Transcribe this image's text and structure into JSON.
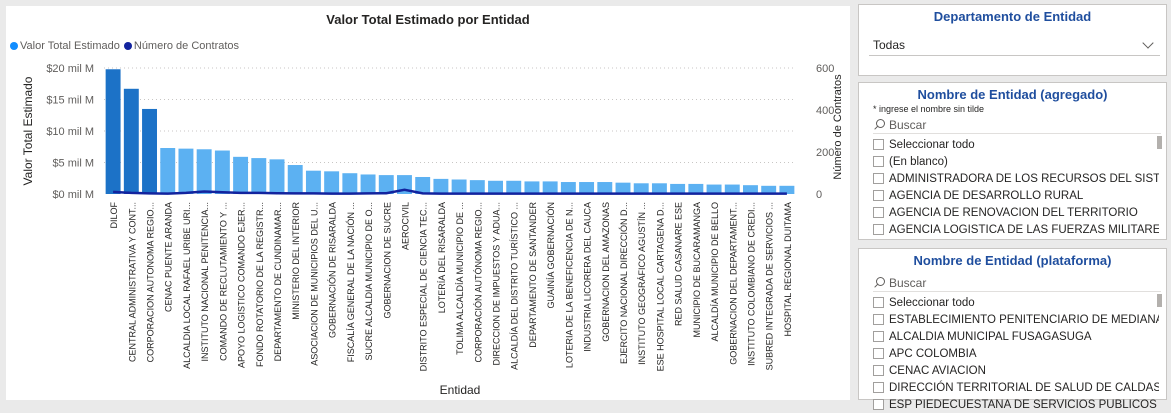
{
  "chart_data": {
    "type": "bar+line",
    "title": "Valor Total Estimado por Entidad",
    "xlabel": "Entidad",
    "ylabel": "Valor Total Estimado",
    "y2label": "Número de Contratos",
    "ylim": [
      0,
      20
    ],
    "y2lim": [
      0,
      600
    ],
    "yticks": [
      "$0 mil M",
      "$5 mil M",
      "$10 mil M",
      "$15 mil M",
      "$20 mil M"
    ],
    "y2ticks": [
      "0",
      "200",
      "400",
      "600"
    ],
    "legend_position": "top-left",
    "categories": [
      "DILOF",
      "CENTRAL ADMINISTRATIVA Y CONT...",
      "CORPORACION AUTONOMA REGIO...",
      "CENAC PUENTE ARANDA",
      "ALCALDIA LOCAL RAFAEL URIBE URI...",
      "INSTITUTO NACIONAL PENITENCIA...",
      "COMANDO DE RECLUTAMIENTO Y ...",
      "APOYO LOGISTICO COMANDO EJER...",
      "FONDO ROTATORIO DE LA REGISTR...",
      "DEPARTAMENTO DE CUNDINAMAR...",
      "MINISTERIO DEL INTERIOR",
      "ASOCIACION DE MUNICIPIOS DEL U...",
      "GOBERNACIÓN DE RISARALDA",
      "FISCALÍA GENERAL DE LA NACIÓN ...",
      "SUCRE ALCALDIA MUNICIPIO DE O...",
      "GOBERNACION DE SUCRE",
      "AEROCIVIL",
      "DISTRITO ESPECIAL DE CIENCIA TEC...",
      "LOTERÍA DEL RISARALDA",
      "TOLIMA ALCALDÍA MUNICIPIO DE ...",
      "CORPORACIÓN AUTÓNOMA REGIO...",
      "DIRECCION DE IMPUESTOS Y ADUA...",
      "ALCALDÍA DEL DISTRITO TURÍSTICO ...",
      "DEPARTAMENTO DE SANTANDER",
      "GUAINÍA GOBERNACIÓN",
      "LOTERIA DE LA BENEFICENCIA DE N...",
      "INDUSTRIA LICORERA DEL CAUCA",
      "GOBERNACION DEL AMAZONAS",
      "EJERCITO NACIONAL DIRECCIÓN D...",
      "INSTITUTO GEOGRÁFICO AGUSTÍN ...",
      "ESE HOSPITAL LOCAL CARTAGENA D...",
      "RED SALUD CASANARE ESE",
      "MUNICIPIO DE BUCARAMANGA",
      "ALCALDÍA MUNICIPIO DE BELLO",
      "GOBERNACION DEL DEPARTAMENT...",
      "INSTITUTO COLOMBIANO DE CREDI...",
      "SUBRED INTEGRADA DE SERVICIOS ...",
      "HOSPITAL REGIONAL DUITAMA"
    ],
    "series": [
      {
        "name": "Valor Total Estimado",
        "type": "bar",
        "color": "#5cb1f2",
        "highlight_color": "#1c72c7",
        "values": [
          19.8,
          16.7,
          13.5,
          7.3,
          7.2,
          7.1,
          6.9,
          5.9,
          5.7,
          5.5,
          4.6,
          3.7,
          3.6,
          3.3,
          3.1,
          3.0,
          3.0,
          2.7,
          2.4,
          2.3,
          2.2,
          2.1,
          2.1,
          2.0,
          2.0,
          1.9,
          1.9,
          1.9,
          1.8,
          1.7,
          1.7,
          1.6,
          1.6,
          1.5,
          1.5,
          1.4,
          1.3,
          1.3
        ]
      },
      {
        "name": "Número de Contratos",
        "type": "line",
        "color": "#12239e",
        "values": [
          10,
          5,
          3,
          2,
          5,
          12,
          8,
          5,
          5,
          4,
          3,
          3,
          2,
          2,
          3,
          4,
          20,
          3,
          2,
          2,
          2,
          2,
          2,
          2,
          2,
          2,
          2,
          2,
          2,
          2,
          2,
          2,
          2,
          2,
          2,
          2,
          2,
          2
        ]
      }
    ]
  },
  "slicers": {
    "departamento": {
      "title": "Departamento de Entidad",
      "selected": "Todas"
    },
    "nombre_agregado": {
      "title": "Nombre de Entidad (agregado)",
      "note": "* ingrese el nombre sin tilde",
      "search_placeholder": "Buscar",
      "items": [
        "Seleccionar todo",
        "(En blanco)",
        "ADMINISTRADORA DE LOS RECURSOS DEL SISTEM...",
        "AGENCIA DE DESARROLLO RURAL",
        "AGENCIA DE RENOVACION DEL TERRITORIO",
        "AGENCIA LOGISTICA DE LAS FUERZAS MILITARES"
      ]
    },
    "nombre_plataforma": {
      "title": "Nombre de Entidad (plataforma)",
      "search_placeholder": "Buscar",
      "items": [
        "Seleccionar todo",
        "ESTABLECIMIENTO PENITENCIARIO DE MEDIANA SE...",
        "ALCALDIA MUNICIPAL FUSAGASUGA",
        "APC COLOMBIA",
        "CENAC AVIACION",
        "DIRECCIÓN TERRITORIAL DE SALUD DE CALDAS",
        "ESP PIEDECUESTANA DE SERVICIOS PUBLICOS"
      ]
    }
  }
}
